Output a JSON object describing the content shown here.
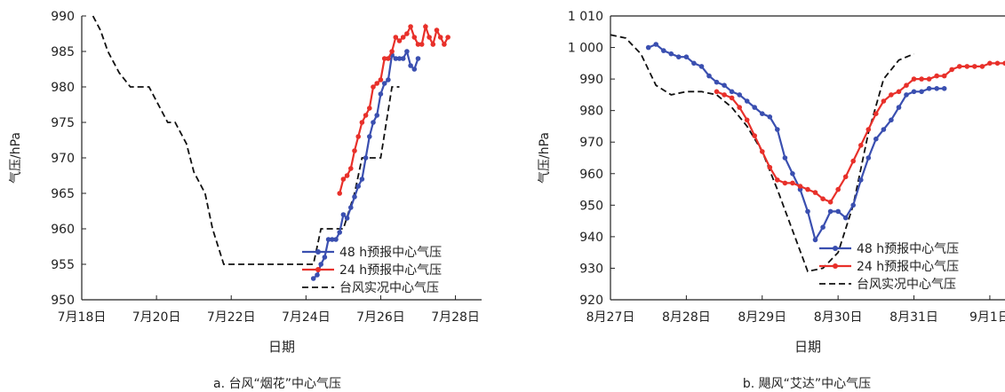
{
  "chart_data": [
    {
      "type": "line",
      "caption": "a. 台风“烟花”中心气压",
      "xlabel": "日期",
      "ylabel": "气压/hPa",
      "xlim": [
        18,
        28.7
      ],
      "ylim": [
        950,
        990
      ],
      "x_ticks": [
        18,
        20,
        22,
        24,
        26,
        28
      ],
      "x_tick_labels": [
        "7月18日",
        "7月20日",
        "7月22日",
        "7月24日",
        "7月26日",
        "7月28日"
      ],
      "y_ticks": [
        950,
        955,
        960,
        965,
        970,
        975,
        980,
        985,
        990
      ],
      "y_tick_labels": [
        "950",
        "955",
        "960",
        "965",
        "970",
        "975",
        "980",
        "985",
        "990"
      ],
      "legend_position": "bottom-right",
      "series": [
        {
          "name": "48 h预报中心气压",
          "color": "#3a4fb0",
          "style": "solid-marker",
          "x": [
            24.2,
            24.3,
            24.4,
            24.5,
            24.6,
            24.7,
            24.8,
            24.9,
            25.0,
            25.1,
            25.2,
            25.3,
            25.4,
            25.5,
            25.6,
            25.7,
            25.8,
            25.9,
            26.0,
            26.1,
            26.2,
            26.3,
            26.4,
            26.5,
            26.6,
            26.7,
            26.8,
            26.9,
            27.0
          ],
          "y": [
            953,
            953.5,
            955,
            956,
            958.5,
            958.5,
            958.5,
            959.5,
            962,
            961.5,
            963,
            964.5,
            966,
            967,
            970,
            973,
            975,
            976,
            979,
            980.5,
            981,
            984.5,
            984,
            984,
            984,
            985,
            983,
            982.5,
            984
          ]
        },
        {
          "name": "24 h预报中心气压",
          "color": "#e8302a",
          "style": "solid-marker",
          "x": [
            24.9,
            25.0,
            25.1,
            25.2,
            25.3,
            25.4,
            25.5,
            25.6,
            25.7,
            25.8,
            25.9,
            26.0,
            26.1,
            26.2,
            26.3,
            26.4,
            26.5,
            26.6,
            26.7,
            26.8,
            26.9,
            27.0,
            27.1,
            27.2,
            27.3,
            27.4,
            27.5,
            27.6,
            27.7,
            27.8
          ],
          "y": [
            965,
            967,
            967.5,
            968.5,
            971,
            973,
            975,
            976,
            977,
            980,
            980.5,
            981,
            984,
            984,
            985,
            987,
            986.5,
            987,
            987.5,
            988.5,
            987,
            986,
            986,
            988.5,
            987,
            986,
            988,
            987,
            986,
            987
          ]
        },
        {
          "name": "台风实况中心气压",
          "color": "#111111",
          "style": "dashed",
          "x": [
            18.3,
            18.5,
            18.7,
            19.0,
            19.3,
            19.5,
            19.8,
            20.0,
            20.3,
            20.5,
            20.8,
            21.0,
            21.3,
            21.5,
            21.8,
            22.0,
            22.3,
            22.5,
            23.0,
            23.5,
            23.9,
            24.2,
            24.4,
            24.7,
            25.0,
            25.3,
            25.5,
            25.7,
            26.0,
            26.3,
            26.5
          ],
          "y": [
            990,
            988,
            985,
            982,
            980,
            980,
            980,
            978,
            975,
            975,
            972,
            968,
            965,
            960,
            955,
            955,
            955,
            955,
            955,
            955,
            955,
            955,
            960,
            960,
            960,
            965,
            970,
            970,
            970,
            980,
            980
          ]
        }
      ]
    },
    {
      "type": "line",
      "caption": "b. 飓风“艾达”中心气压",
      "xlabel": "日期",
      "ylabel": "气压/hPa",
      "xlim": [
        27,
        32.2
      ],
      "ylim": [
        920,
        1010
      ],
      "x_ticks": [
        27,
        28,
        29,
        30,
        31,
        32
      ],
      "x_tick_labels": [
        "8月27日",
        "8月28日",
        "8月29日",
        "8月30日",
        "8月31日",
        "9月1日"
      ],
      "y_ticks": [
        920,
        930,
        940,
        950,
        960,
        970,
        980,
        990,
        1000,
        1010
      ],
      "y_tick_labels": [
        "920",
        "930",
        "940",
        "950",
        "960",
        "970",
        "980",
        "990",
        "1 000",
        "1 010"
      ],
      "legend_position": "bottom-right",
      "series": [
        {
          "name": "48 h预报中心气压",
          "color": "#3a4fb0",
          "style": "solid-marker",
          "x": [
            27.5,
            27.6,
            27.7,
            27.8,
            27.9,
            28.0,
            28.1,
            28.2,
            28.3,
            28.4,
            28.5,
            28.6,
            28.7,
            28.8,
            28.9,
            29.0,
            29.1,
            29.2,
            29.3,
            29.4,
            29.5,
            29.6,
            29.7,
            29.8,
            29.9,
            30.0,
            30.1,
            30.2,
            30.3,
            30.4,
            30.5,
            30.6,
            30.7,
            30.8,
            30.9,
            31.0,
            31.1,
            31.2,
            31.3,
            31.4
          ],
          "y": [
            1000,
            1001,
            999,
            998,
            997,
            997,
            995,
            994,
            991,
            989,
            988,
            986,
            985,
            983,
            981,
            979,
            978,
            974,
            965,
            960,
            955,
            948,
            939,
            943,
            948,
            948,
            946,
            950,
            958,
            965,
            971,
            974,
            977,
            981,
            985,
            986,
            986,
            987,
            987,
            987
          ]
        },
        {
          "name": "24 h预报中心气压",
          "color": "#e8302a",
          "style": "solid-marker",
          "x": [
            28.4,
            28.5,
            28.6,
            28.7,
            28.8,
            28.9,
            29.0,
            29.1,
            29.2,
            29.3,
            29.4,
            29.5,
            29.6,
            29.7,
            29.8,
            29.9,
            30.0,
            30.1,
            30.2,
            30.3,
            30.4,
            30.5,
            30.6,
            30.7,
            30.8,
            30.9,
            31.0,
            31.1,
            31.2,
            31.3,
            31.4,
            31.5,
            31.6,
            31.7,
            31.8,
            31.9,
            32.0,
            32.1,
            32.2
          ],
          "y": [
            986,
            985,
            984,
            981,
            977,
            972,
            967,
            962,
            958,
            957,
            957,
            956,
            955,
            954,
            952,
            951,
            955,
            959,
            964,
            969,
            974,
            979,
            983,
            985,
            986,
            988,
            990,
            990,
            990,
            991,
            991,
            993,
            994,
            994,
            994,
            994,
            995,
            995,
            995
          ]
        },
        {
          "name": "台风实况中心气压",
          "color": "#111111",
          "style": "dashed",
          "x": [
            27.0,
            27.2,
            27.4,
            27.6,
            27.8,
            28.0,
            28.2,
            28.4,
            28.6,
            28.8,
            29.0,
            29.2,
            29.4,
            29.6,
            29.8,
            30.0,
            30.2,
            30.4,
            30.6,
            30.8,
            31.0
          ],
          "y": [
            1004,
            1003,
            998,
            988,
            985,
            986,
            986,
            985,
            981,
            975,
            967,
            955,
            942,
            929,
            930,
            935,
            950,
            973,
            990,
            996,
            998
          ]
        }
      ]
    }
  ]
}
